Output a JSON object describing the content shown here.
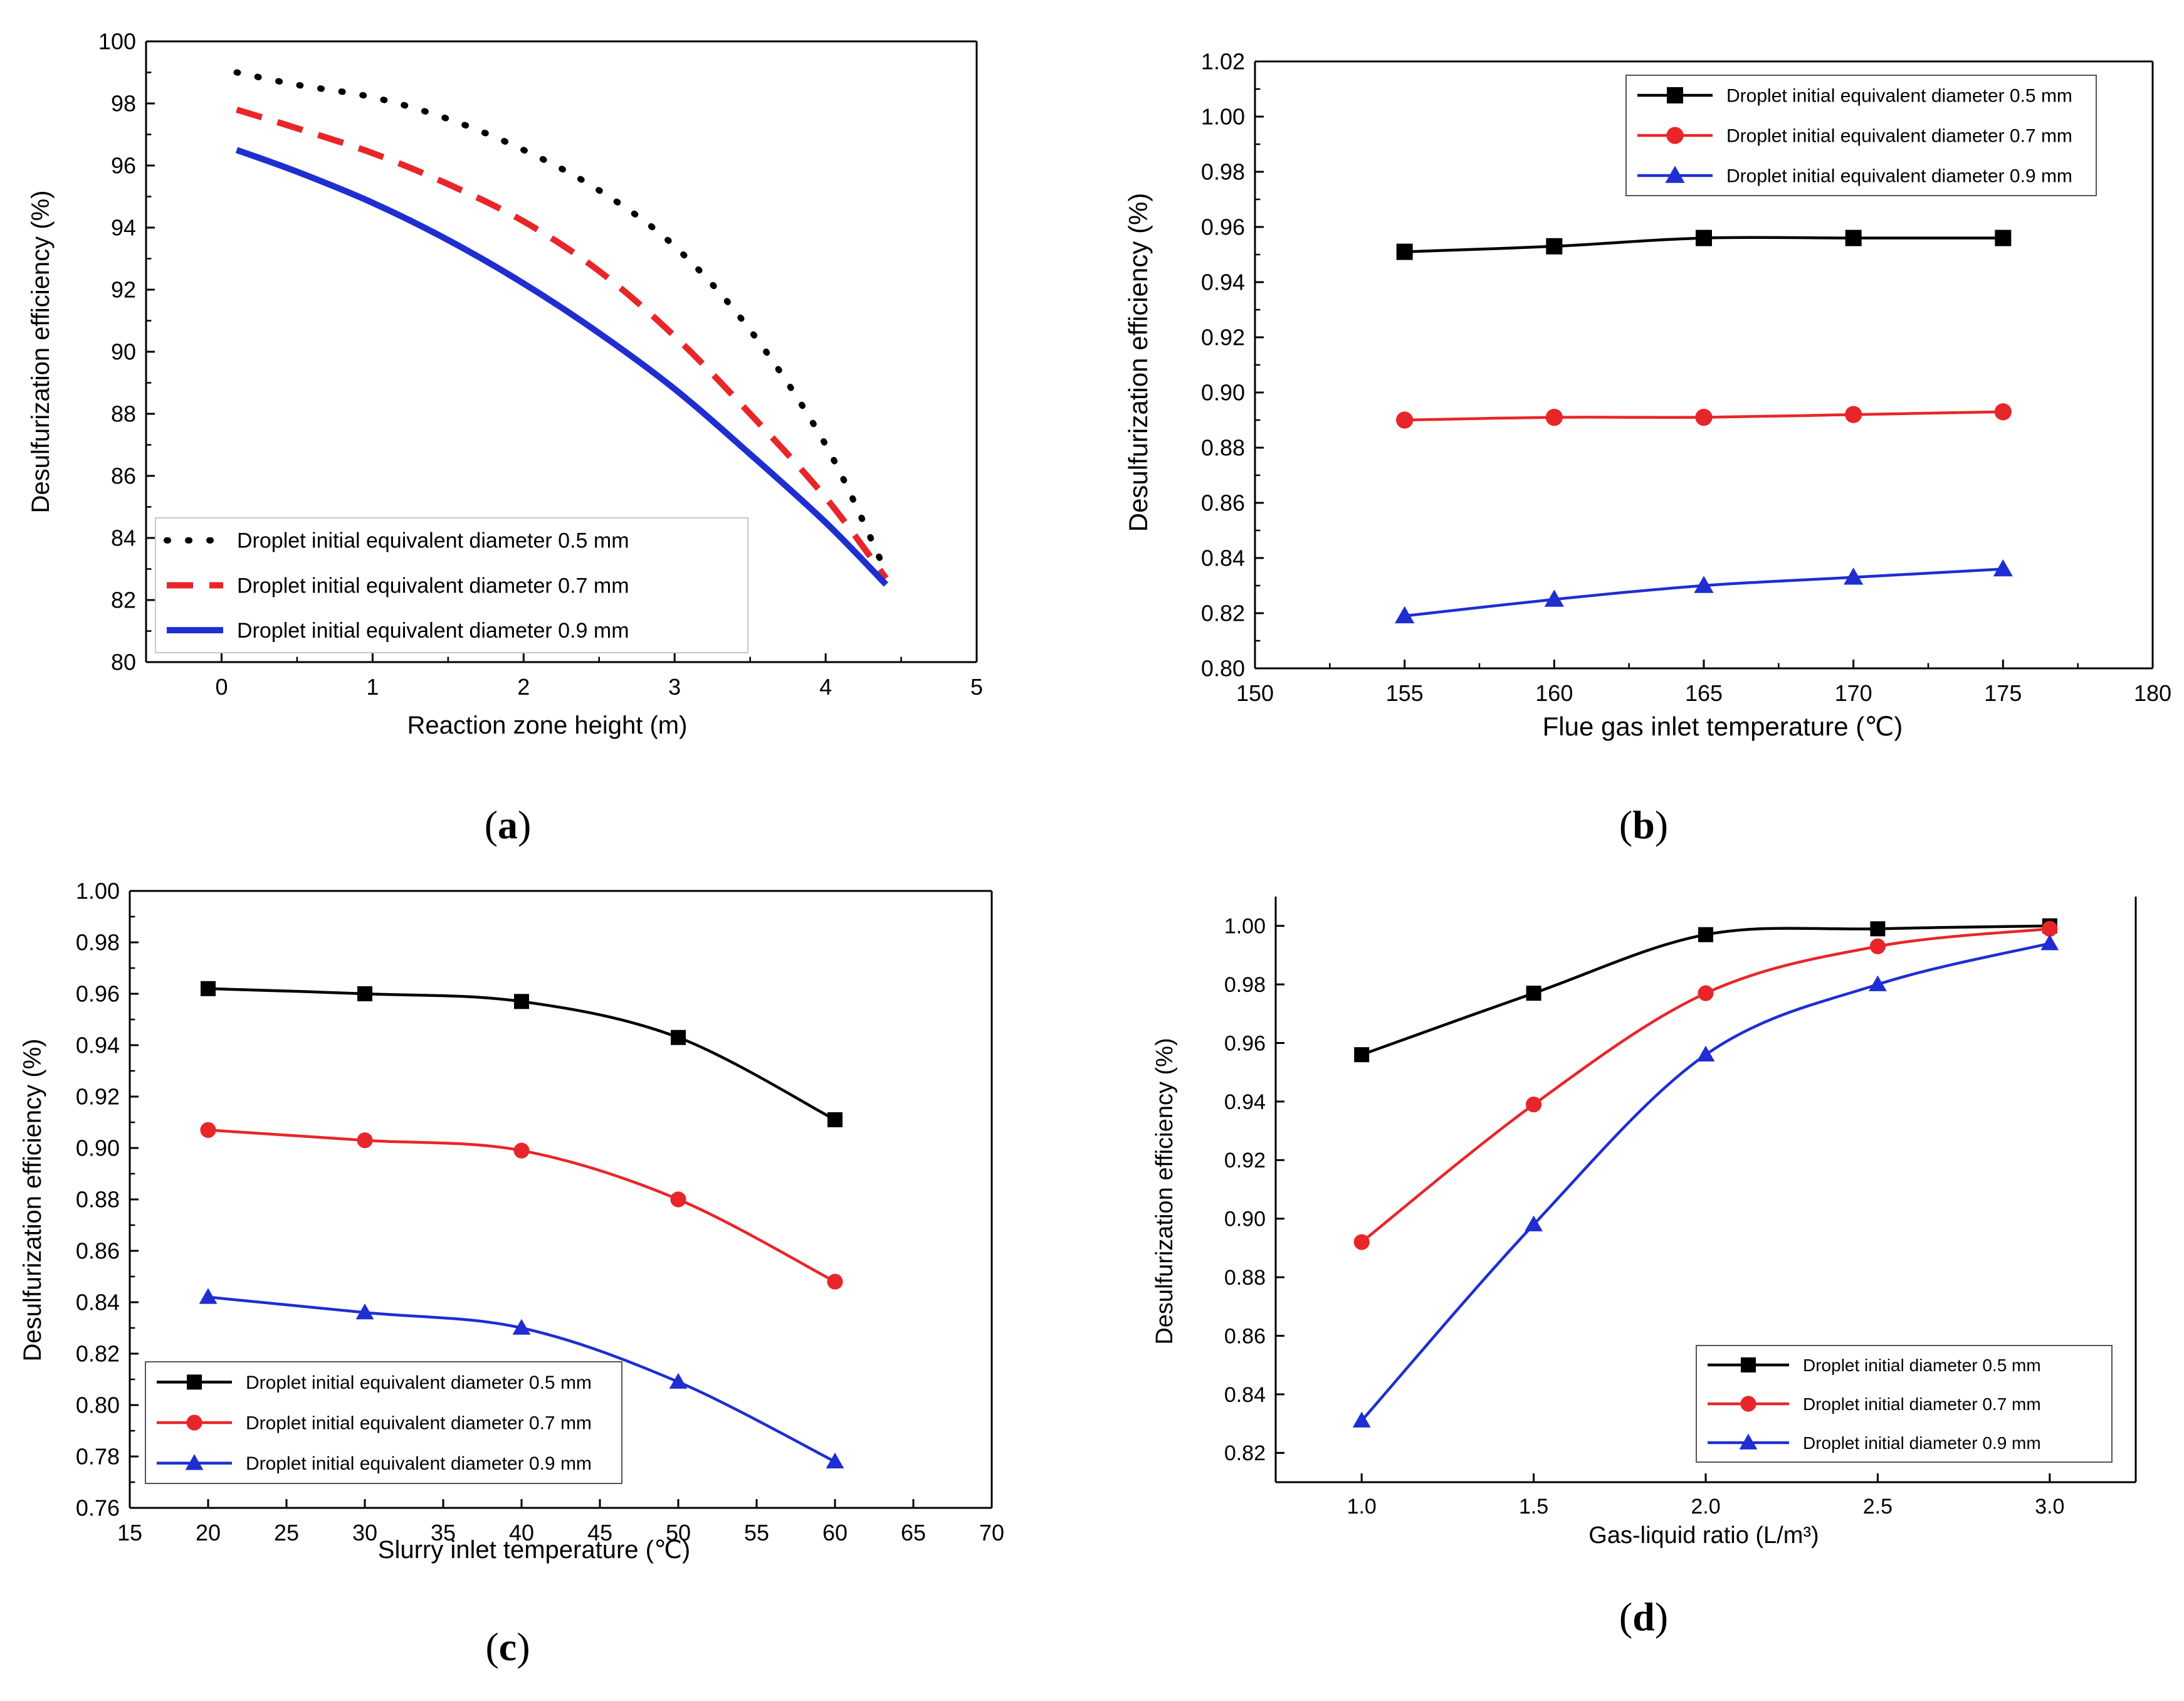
{
  "chart_data": [
    {
      "type": "line",
      "panel_label": "(a)",
      "label_letter": "a",
      "xlabel": "Reaction zone height (m)",
      "ylabel": "Desulfurization efficiency (%)",
      "xlim": [
        -0.5,
        5
      ],
      "ylim": [
        80,
        100
      ],
      "xticks": [
        "0",
        "1",
        "2",
        "3",
        "4",
        "5"
      ],
      "xtick_values": [
        0,
        1,
        2,
        3,
        4,
        5
      ],
      "yticks": [
        "80",
        "82",
        "84",
        "86",
        "88",
        "90",
        "92",
        "94",
        "96",
        "98",
        "100"
      ],
      "ytick_values": [
        80,
        82,
        84,
        86,
        88,
        90,
        92,
        94,
        96,
        98,
        100
      ],
      "legend_position": "bottom-left",
      "series": [
        {
          "name": "Droplet initial equivalent diameter 0.5 mm",
          "color": "#000000",
          "style": "dotted",
          "marker": "none",
          "x": [
            0.1,
            0.5,
            1.0,
            1.5,
            2.0,
            2.5,
            3.0,
            3.5,
            4.0,
            4.4
          ],
          "y": [
            99.0,
            98.6,
            98.2,
            97.5,
            96.5,
            95.2,
            93.4,
            90.7,
            87.0,
            82.9
          ]
        },
        {
          "name": "Droplet initial equivalent diameter 0.7 mm",
          "color": "#e8262a",
          "style": "dashed",
          "marker": "none",
          "x": [
            0.1,
            0.5,
            1.0,
            1.5,
            2.0,
            2.5,
            3.0,
            3.5,
            4.0,
            4.4
          ],
          "y": [
            97.8,
            97.2,
            96.4,
            95.4,
            94.2,
            92.6,
            90.5,
            88.0,
            85.3,
            82.7
          ]
        },
        {
          "name": "Droplet initial equivalent diameter 0.9 mm",
          "color": "#1f2ed0",
          "style": "solid",
          "marker": "none",
          "x": [
            0.1,
            0.5,
            1.0,
            1.5,
            2.0,
            2.5,
            3.0,
            3.5,
            4.0,
            4.4
          ],
          "y": [
            96.5,
            95.8,
            94.8,
            93.6,
            92.2,
            90.6,
            88.8,
            86.7,
            84.5,
            82.5
          ]
        }
      ]
    },
    {
      "type": "line",
      "panel_label": "(b)",
      "label_letter": "b",
      "xlabel": "Flue gas inlet temperature (℃)",
      "ylabel": "Desulfurization efficiency (%)",
      "xlim": [
        150,
        180
      ],
      "ylim": [
        0.8,
        1.02
      ],
      "xticks": [
        "150",
        "155",
        "160",
        "165",
        "170",
        "175",
        "180"
      ],
      "xtick_values": [
        150,
        155,
        160,
        165,
        170,
        175,
        180
      ],
      "yticks": [
        "0.80",
        "0.82",
        "0.84",
        "0.86",
        "0.88",
        "0.90",
        "0.92",
        "0.94",
        "0.96",
        "0.98",
        "1.00",
        "1.02"
      ],
      "ytick_values": [
        0.8,
        0.82,
        0.84,
        0.86,
        0.88,
        0.9,
        0.92,
        0.94,
        0.96,
        0.98,
        1.0,
        1.02
      ],
      "legend_position": "top-right",
      "series": [
        {
          "name": "Droplet initial equivalent diameter 0.5 mm",
          "color": "#000000",
          "style": "solid",
          "marker": "square",
          "x": [
            155,
            160,
            165,
            170,
            175
          ],
          "y": [
            0.951,
            0.953,
            0.956,
            0.956,
            0.956
          ]
        },
        {
          "name": "Droplet initial equivalent diameter 0.7 mm",
          "color": "#e8262a",
          "style": "solid",
          "marker": "circle",
          "x": [
            155,
            160,
            165,
            170,
            175
          ],
          "y": [
            0.89,
            0.891,
            0.891,
            0.892,
            0.893
          ]
        },
        {
          "name": "Droplet initial equivalent diameter 0.9 mm",
          "color": "#1f2ed0",
          "style": "solid",
          "marker": "triangle",
          "x": [
            155,
            160,
            165,
            170,
            175
          ],
          "y": [
            0.819,
            0.825,
            0.83,
            0.833,
            0.836
          ]
        }
      ]
    },
    {
      "type": "line",
      "panel_label": "(c)",
      "label_letter": "c",
      "xlabel": "Slurry inlet temperature (℃)",
      "ylabel": "Desulfurization efficiency (%)",
      "xlim": [
        15,
        70
      ],
      "ylim": [
        0.76,
        1.0
      ],
      "xticks": [
        "15",
        "20",
        "25",
        "30",
        "35",
        "40",
        "45",
        "50",
        "55",
        "60",
        "65",
        "70"
      ],
      "xtick_values": [
        15,
        20,
        25,
        30,
        35,
        40,
        45,
        50,
        55,
        60,
        65,
        70
      ],
      "yticks": [
        "0.76",
        "0.78",
        "0.80",
        "0.82",
        "0.84",
        "0.86",
        "0.88",
        "0.90",
        "0.92",
        "0.94",
        "0.96",
        "0.98",
        "1.00"
      ],
      "ytick_values": [
        0.76,
        0.78,
        0.8,
        0.82,
        0.84,
        0.86,
        0.88,
        0.9,
        0.92,
        0.94,
        0.96,
        0.98,
        1.0
      ],
      "legend_position": "bottom-left",
      "series": [
        {
          "name": "Droplet initial equivalent diameter 0.5 mm",
          "color": "#000000",
          "style": "solid",
          "marker": "square",
          "x": [
            20,
            30,
            40,
            50,
            60
          ],
          "y": [
            0.962,
            0.96,
            0.957,
            0.943,
            0.911
          ]
        },
        {
          "name": "Droplet initial equivalent diameter 0.7 mm",
          "color": "#e8262a",
          "style": "solid",
          "marker": "circle",
          "x": [
            20,
            30,
            40,
            50,
            60
          ],
          "y": [
            0.907,
            0.903,
            0.899,
            0.88,
            0.848
          ]
        },
        {
          "name": "Droplet initial equivalent diameter 0.9 mm",
          "color": "#1f2ed0",
          "style": "solid",
          "marker": "triangle",
          "x": [
            20,
            30,
            40,
            50,
            60
          ],
          "y": [
            0.842,
            0.836,
            0.83,
            0.809,
            0.778
          ]
        }
      ]
    },
    {
      "type": "line",
      "panel_label": "(d)",
      "label_letter": "d",
      "xlabel": "Gas-liquid ratio (L/m³)",
      "ylabel": "Desulfurization efficiency (%)",
      "xlim": [
        0.75,
        3.25
      ],
      "ylim": [
        0.81,
        1.01
      ],
      "xticks": [
        "1.0",
        "1.5",
        "2.0",
        "2.5",
        "3.0"
      ],
      "xtick_values": [
        1.0,
        1.5,
        2.0,
        2.5,
        3.0
      ],
      "yticks": [
        "0.82",
        "0.84",
        "0.86",
        "0.88",
        "0.90",
        "0.92",
        "0.94",
        "0.96",
        "0.98",
        "1.00"
      ],
      "ytick_values": [
        0.82,
        0.84,
        0.86,
        0.88,
        0.9,
        0.92,
        0.94,
        0.96,
        0.98,
        1.0
      ],
      "legend_position": "bottom-right",
      "series": [
        {
          "name": "Droplet initial diameter 0.5 mm",
          "color": "#000000",
          "style": "solid",
          "marker": "square",
          "x": [
            1.0,
            1.5,
            2.0,
            2.5,
            3.0
          ],
          "y": [
            0.956,
            0.977,
            0.997,
            0.999,
            1.0
          ]
        },
        {
          "name": "Droplet initial diameter 0.7 mm",
          "color": "#e8262a",
          "style": "solid",
          "marker": "circle",
          "x": [
            1.0,
            1.5,
            2.0,
            2.5,
            3.0
          ],
          "y": [
            0.892,
            0.939,
            0.977,
            0.993,
            0.999
          ]
        },
        {
          "name": "Droplet initial diameter 0.9 mm",
          "color": "#1f2ed0",
          "style": "solid",
          "marker": "triangle",
          "x": [
            1.0,
            1.5,
            2.0,
            2.5,
            3.0
          ],
          "y": [
            0.831,
            0.898,
            0.956,
            0.98,
            0.994
          ]
        }
      ]
    }
  ]
}
